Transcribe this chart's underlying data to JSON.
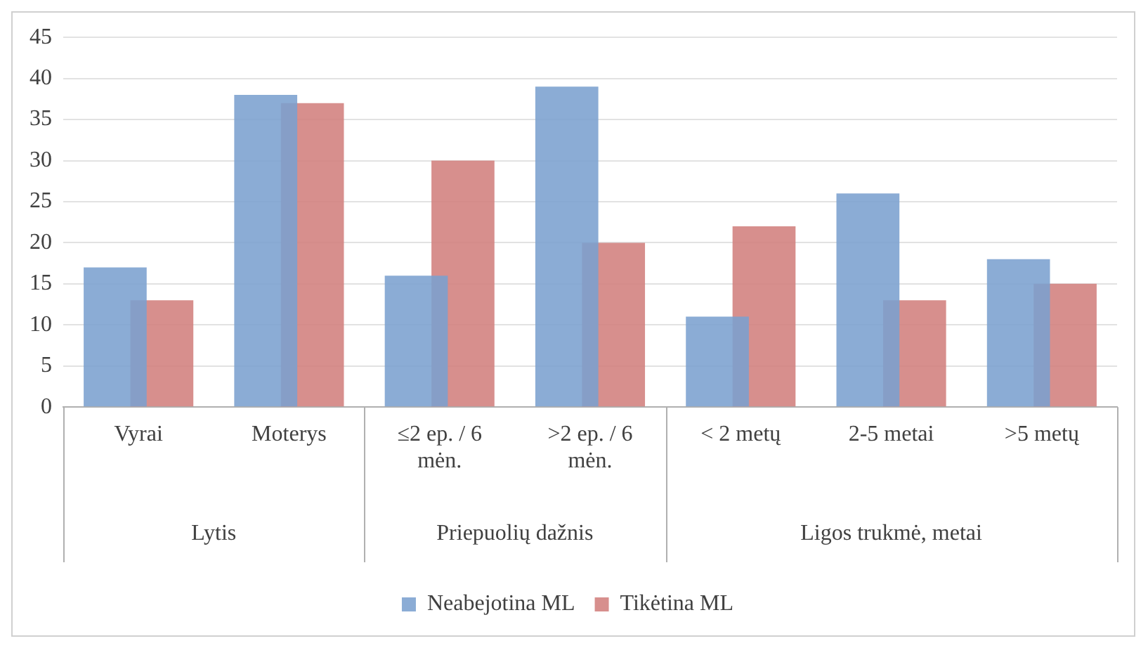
{
  "chart_data": {
    "type": "bar",
    "categories": [
      "Vyrai",
      "Moterys",
      "≤2 ep. / 6 mėn.",
      ">2 ep. / 6 mėn.",
      "< 2 metų",
      "2-5 metai",
      ">5 metų"
    ],
    "series": [
      {
        "name": "Neabejotina ML",
        "color": "#7ba0cf",
        "values": [
          17,
          38,
          16,
          39,
          11,
          26,
          18
        ]
      },
      {
        "name": "Tikėtina ML",
        "color": "#d27f7d",
        "values": [
          13,
          37,
          30,
          20,
          22,
          13,
          15
        ]
      }
    ],
    "annotations": [
      "Lytis",
      "Priepuolių dažnis",
      "Ligos trukmė, metai"
    ],
    "ylim": [
      0,
      45
    ],
    "yticks": [
      0,
      5,
      10,
      15,
      20,
      25,
      30,
      35,
      40,
      45
    ],
    "grid": "y",
    "legend": "bottom"
  }
}
